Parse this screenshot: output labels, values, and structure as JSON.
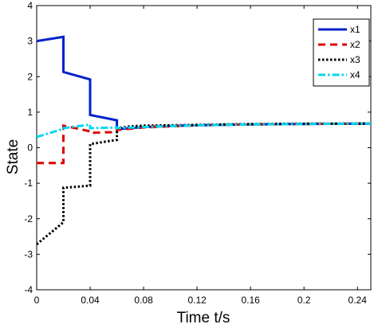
{
  "chart_data": {
    "type": "line",
    "title": "",
    "xlabel": "Time    t/s",
    "ylabel": "State",
    "xlim": [
      0,
      0.25
    ],
    "ylim": [
      -4,
      4
    ],
    "xticks": [
      0,
      0.04,
      0.08,
      0.12,
      0.16,
      0.2,
      0.24
    ],
    "xtick_labels": [
      "0",
      "0.04",
      "0.08",
      "0.12",
      "0.16",
      "0.2",
      "0.24"
    ],
    "yticks": [
      -4,
      -3,
      -2,
      -1,
      0,
      1,
      2,
      3,
      4
    ],
    "ytick_labels": [
      "-4",
      "-3",
      "-2",
      "-1",
      "0",
      "1",
      "2",
      "3",
      "4"
    ],
    "grid": false,
    "legend_position": "top-right",
    "series": [
      {
        "name": "x1",
        "color": "#0022cc",
        "dash": "solid",
        "x": [
          0,
          0.02,
          0.02,
          0.04,
          0.04,
          0.06,
          0.06,
          0.08,
          0.1,
          0.12,
          0.15,
          0.18,
          0.21,
          0.25
        ],
        "y": [
          3.0,
          3.12,
          2.13,
          1.92,
          0.92,
          0.77,
          0.52,
          0.58,
          0.61,
          0.63,
          0.65,
          0.66,
          0.67,
          0.68
        ]
      },
      {
        "name": "x2",
        "color": "#dd0000",
        "dash": "dashed",
        "x": [
          0,
          0.02,
          0.02,
          0.04,
          0.04,
          0.06,
          0.06,
          0.08,
          0.1,
          0.12,
          0.15,
          0.18,
          0.21,
          0.25
        ],
        "y": [
          -0.43,
          -0.43,
          0.62,
          0.46,
          0.42,
          0.44,
          0.5,
          0.57,
          0.6,
          0.63,
          0.65,
          0.66,
          0.67,
          0.68
        ]
      },
      {
        "name": "x3",
        "color": "#000000",
        "dash": "dotted",
        "x": [
          0,
          0.02,
          0.02,
          0.04,
          0.04,
          0.06,
          0.06,
          0.07,
          0.08,
          0.1,
          0.12,
          0.15,
          0.18,
          0.21,
          0.25
        ],
        "y": [
          -2.72,
          -2.1,
          -1.13,
          -1.07,
          0.1,
          0.22,
          0.55,
          0.6,
          0.62,
          0.63,
          0.64,
          0.66,
          0.67,
          0.68,
          0.68
        ]
      },
      {
        "name": "x4",
        "color": "#00d8f0",
        "dash": "dashdot",
        "x": [
          0,
          0.02,
          0.02,
          0.04,
          0.04,
          0.06,
          0.06,
          0.08,
          0.1,
          0.12,
          0.15,
          0.18,
          0.21,
          0.25
        ],
        "y": [
          0.3,
          0.53,
          0.55,
          0.65,
          0.55,
          0.57,
          0.55,
          0.58,
          0.61,
          0.63,
          0.65,
          0.66,
          0.67,
          0.68
        ]
      }
    ]
  }
}
